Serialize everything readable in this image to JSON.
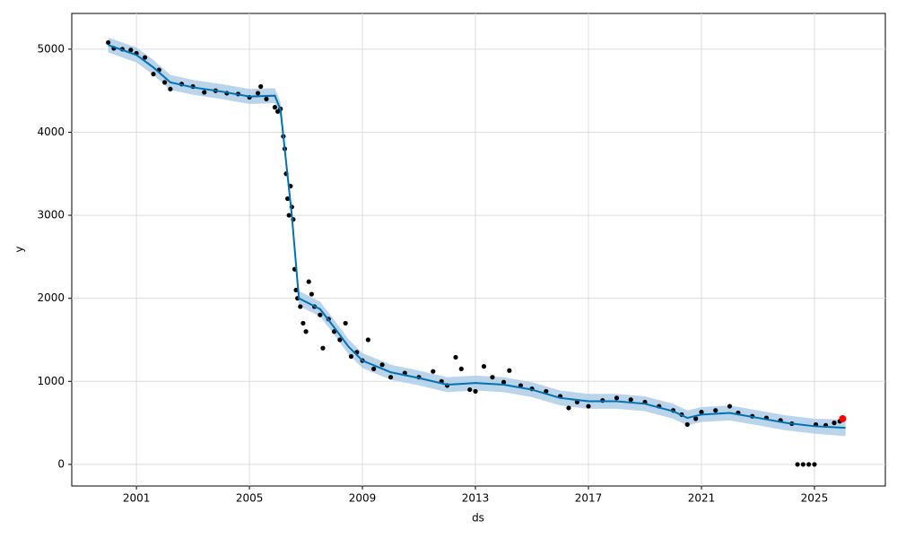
{
  "chart_data": {
    "type": "forecast",
    "xlabel": "ds",
    "ylabel": "y",
    "xlim": [
      1998.71,
      2027.51
    ],
    "ylim": [
      -260,
      5430
    ],
    "xticks": [
      2001,
      2005,
      2009,
      2013,
      2017,
      2021,
      2025
    ],
    "yticks": [
      0,
      1000,
      2000,
      3000,
      4000,
      5000
    ],
    "grid": true,
    "forecast": {
      "color": "#0072b2",
      "band_color": "#a9cbe6",
      "x": [
        2000.0,
        2000.5,
        2001.0,
        2001.6,
        2002.2,
        2003.0,
        2004.0,
        2005.0,
        2005.9,
        2006.1,
        2006.5,
        2006.75,
        2007.5,
        2008.0,
        2008.5,
        2009.0,
        2010.0,
        2011.0,
        2012.0,
        2013.0,
        2014.0,
        2015.0,
        2016.0,
        2017.0,
        2018.0,
        2019.0,
        2020.0,
        2020.5,
        2021.0,
        2022.0,
        2023.0,
        2024.0,
        2025.0,
        2026.1
      ],
      "values": [
        5050,
        4990,
        4930,
        4780,
        4600,
        4540,
        4490,
        4430,
        4440,
        4270,
        3000,
        2000,
        1870,
        1650,
        1420,
        1250,
        1110,
        1040,
        960,
        980,
        960,
        900,
        800,
        760,
        760,
        730,
        640,
        560,
        600,
        620,
        560,
        500,
        460,
        440
      ],
      "lower": [
        4960,
        4900,
        4840,
        4690,
        4510,
        4450,
        4400,
        4340,
        4350,
        4180,
        2910,
        1910,
        1780,
        1560,
        1330,
        1160,
        1020,
        950,
        870,
        890,
        870,
        810,
        710,
        670,
        670,
        640,
        550,
        470,
        510,
        530,
        470,
        410,
        370,
        340
      ],
      "upper": [
        5140,
        5080,
        5020,
        4870,
        4690,
        4630,
        4580,
        4520,
        4530,
        4360,
        3090,
        2090,
        1960,
        1740,
        1510,
        1340,
        1200,
        1130,
        1050,
        1070,
        1050,
        990,
        890,
        850,
        850,
        820,
        730,
        650,
        690,
        710,
        650,
        590,
        550,
        540
      ]
    },
    "observed": {
      "color": "#000000",
      "x": [
        2000.0,
        2000.2,
        2000.5,
        2000.8,
        2001.0,
        2001.3,
        2001.6,
        2001.8,
        2002.0,
        2002.2,
        2002.6,
        2003.0,
        2003.4,
        2003.8,
        2004.2,
        2004.6,
        2005.0,
        2005.3,
        2005.4,
        2005.6,
        2005.9,
        2006.0,
        2006.1,
        2006.2,
        2006.25,
        2006.3,
        2006.35,
        2006.4,
        2006.45,
        2006.5,
        2006.55,
        2006.6,
        2006.65,
        2006.7,
        2006.8,
        2006.9,
        2007.0,
        2007.1,
        2007.2,
        2007.3,
        2007.5,
        2007.6,
        2007.8,
        2008.0,
        2008.2,
        2008.4,
        2008.6,
        2008.8,
        2009.0,
        2009.2,
        2009.4,
        2009.7,
        2010.0,
        2010.5,
        2011.0,
        2011.5,
        2011.8,
        2012.0,
        2012.3,
        2012.5,
        2012.8,
        2013.0,
        2013.3,
        2013.6,
        2014.0,
        2014.2,
        2014.6,
        2015.0,
        2015.5,
        2016.0,
        2016.3,
        2016.6,
        2017.0,
        2017.5,
        2018.0,
        2018.5,
        2019.0,
        2019.5,
        2020.0,
        2020.3,
        2020.5,
        2020.8,
        2021.0,
        2021.5,
        2022.0,
        2022.3,
        2022.8,
        2023.3,
        2023.8,
        2024.2,
        2024.4,
        2024.6,
        2024.8,
        2025.0,
        2025.05,
        2025.4,
        2025.7,
        2025.9
      ],
      "values": [
        5080,
        5010,
        5000,
        4990,
        4950,
        4900,
        4700,
        4750,
        4600,
        4520,
        4580,
        4550,
        4480,
        4500,
        4470,
        4460,
        4420,
        4470,
        4550,
        4400,
        4300,
        4250,
        4280,
        3950,
        3800,
        3500,
        3200,
        3000,
        3350,
        3100,
        2950,
        2350,
        2100,
        2000,
        1900,
        1700,
        1600,
        2200,
        2050,
        1900,
        1800,
        1400,
        1750,
        1600,
        1500,
        1700,
        1300,
        1350,
        1250,
        1500,
        1150,
        1200,
        1050,
        1100,
        1050,
        1120,
        1000,
        950,
        1290,
        1150,
        900,
        880,
        1180,
        1050,
        990,
        1130,
        950,
        910,
        880,
        820,
        680,
        750,
        700,
        770,
        800,
        780,
        750,
        700,
        650,
        600,
        480,
        550,
        630,
        650,
        700,
        620,
        580,
        560,
        530,
        490,
        0,
        0,
        0,
        0,
        480,
        470,
        500,
        520
      ]
    },
    "last_point": {
      "x": 2026.0,
      "value": 550,
      "color": "#ff0000"
    }
  }
}
